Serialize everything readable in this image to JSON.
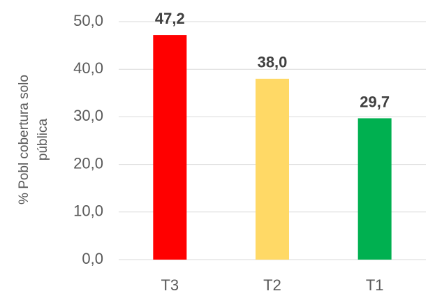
{
  "chart_data": {
    "type": "bar",
    "ylabel": [
      "% Pobl cobertura solo",
      "pública"
    ],
    "categories": [
      "T3",
      "T2",
      "T1"
    ],
    "values": [
      47.2,
      38.0,
      29.7
    ],
    "value_labels": [
      "47,2",
      "38,0",
      "29,7"
    ],
    "colors": [
      "#ff0000",
      "#ffd966",
      "#00b050"
    ],
    "ylim": [
      0,
      50
    ],
    "yticks": [
      {
        "value": 0,
        "label": "0,0"
      },
      {
        "value": 10,
        "label": "10,0"
      },
      {
        "value": 20,
        "label": "20,0"
      },
      {
        "value": 30,
        "label": "30,0"
      },
      {
        "value": 40,
        "label": "40,0"
      },
      {
        "value": 50,
        "label": "50,0"
      }
    ],
    "grid": true
  }
}
